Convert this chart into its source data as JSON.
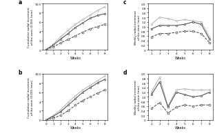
{
  "weeks_ab": [
    0,
    1,
    2,
    3,
    4,
    5,
    6,
    7,
    8
  ],
  "weeks_cd": [
    1,
    2,
    3,
    4,
    5,
    6,
    7,
    8
  ],
  "panel_a": {
    "label": "a",
    "ylabel": "Cumulative radial increment\nof the stem (D-D0) (mm)",
    "xlabel": "Weeks",
    "ylim": [
      0,
      10
    ],
    "yticks": [
      0,
      2,
      4,
      6,
      8,
      10
    ],
    "yticklabels": [
      "0",
      "2",
      "4",
      "6",
      "8",
      "10.0"
    ],
    "line1": [
      0,
      1.2,
      2.8,
      4.2,
      5.5,
      6.5,
      7.5,
      8.5,
      9.3
    ],
    "line2": [
      0,
      1.0,
      2.3,
      3.5,
      4.8,
      5.8,
      6.8,
      7.4,
      7.8
    ],
    "line3": [
      0,
      0.6,
      1.5,
      2.2,
      3.0,
      3.8,
      4.5,
      5.0,
      5.5
    ]
  },
  "panel_b": {
    "label": "b",
    "ylabel": "Cumulative radial increment\nof the stem (D-D0) (mm)",
    "xlabel": "Weeks",
    "ylim": [
      0,
      10
    ],
    "yticks": [
      0,
      2,
      4,
      6,
      8,
      10
    ],
    "yticklabels": [
      "0",
      "2",
      "4",
      "6",
      "8",
      "10.0"
    ],
    "line1": [
      0,
      1.0,
      2.2,
      3.8,
      5.2,
      6.5,
      7.5,
      8.5,
      9.5
    ],
    "line2": [
      0,
      0.8,
      1.8,
      3.2,
      4.6,
      6.0,
      7.0,
      8.0,
      8.8
    ],
    "line3": [
      0,
      0.4,
      1.0,
      2.0,
      3.2,
      4.2,
      5.0,
      5.8,
      6.5
    ]
  },
  "panel_c": {
    "label": "c",
    "ylabel": "Weekly radial increment\nof the stem (mm)",
    "xlabel": "Weeks",
    "ylim": [
      0,
      2.0
    ],
    "yticks": [
      0,
      0.2,
      0.4,
      0.6,
      0.8,
      1.0,
      1.2,
      1.4,
      1.6,
      1.8,
      2.0
    ],
    "yticklabels": [
      "0",
      "0.2",
      "0.4",
      "0.6",
      "0.8",
      "1.0",
      "1.2",
      "1.4",
      "1.6",
      "1.8",
      "2.0"
    ],
    "line1": [
      1.1,
      1.4,
      1.35,
      1.25,
      1.3,
      1.25,
      1.2,
      0.55
    ],
    "line2": [
      0.9,
      1.05,
      1.05,
      1.05,
      1.1,
      1.2,
      1.1,
      0.45
    ],
    "line3": [
      0.55,
      0.7,
      0.7,
      0.75,
      0.8,
      0.8,
      0.7,
      0.3
    ]
  },
  "panel_d": {
    "label": "d",
    "ylabel": "Weekly radial increment\nof the stem (mm)",
    "xlabel": "Weeks",
    "ylim": [
      0,
      2.0
    ],
    "yticks": [
      0,
      0.2,
      0.4,
      0.6,
      0.8,
      1.0,
      1.2,
      1.4,
      1.6,
      1.8,
      2.0
    ],
    "yticklabels": [
      "0",
      "0.2",
      "0.4",
      "0.6",
      "0.8",
      "1.0",
      "1.2",
      "1.4",
      "1.6",
      "1.8",
      "2.0"
    ],
    "line1": [
      1.2,
      1.85,
      0.6,
      1.3,
      1.35,
      1.3,
      1.3,
      1.3
    ],
    "line2": [
      1.1,
      1.65,
      0.55,
      1.2,
      1.1,
      1.0,
      1.05,
      1.2
    ],
    "line3": [
      0.5,
      0.75,
      0.3,
      0.55,
      0.65,
      0.6,
      0.65,
      0.65
    ]
  },
  "line1_color": "#b0b0b0",
  "line2_color": "#404040",
  "line3_color": "#404040",
  "line1_marker": "s",
  "line2_marker": "s",
  "line3_marker": "o",
  "line1_ls": "-",
  "line2_ls": "-",
  "line3_ls": "--"
}
